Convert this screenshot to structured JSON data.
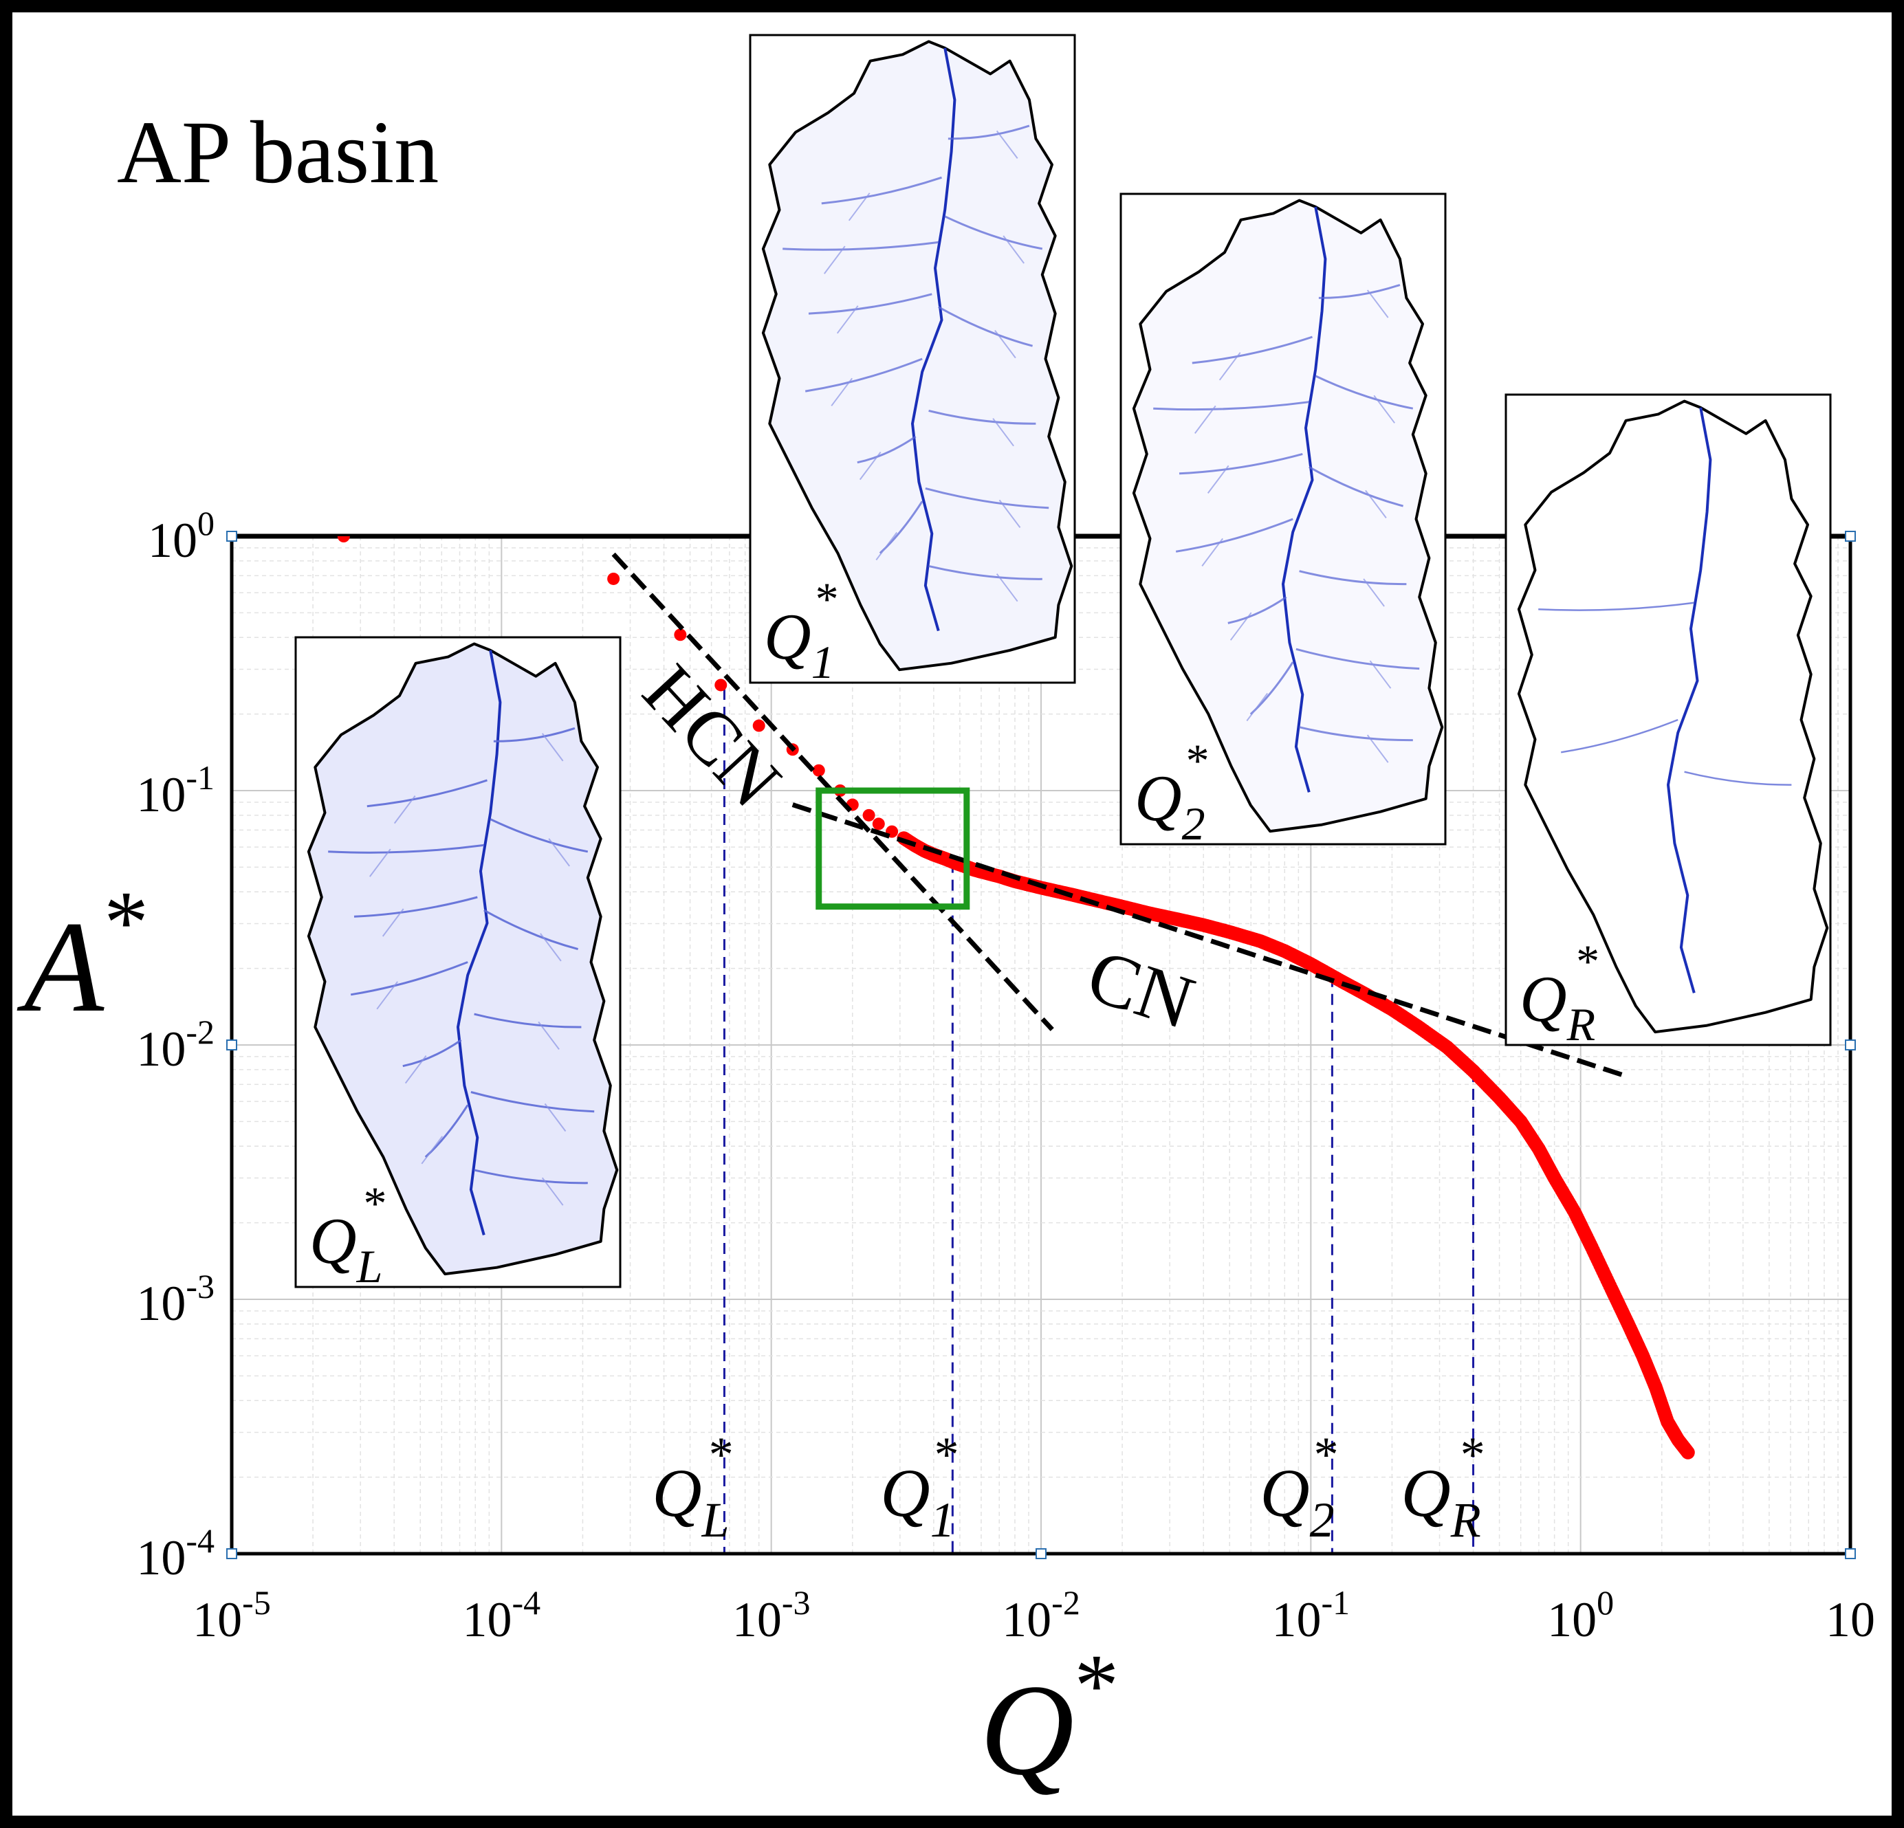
{
  "title": "AP basin",
  "chart_data": {
    "type": "scatter",
    "xlabel": "Q",
    "xlabel_sup": "*",
    "ylabel": "A",
    "ylabel_sup": "*",
    "xscale": "log",
    "yscale": "log",
    "xlim": [
      1e-05,
      10
    ],
    "ylim": [
      0.0001,
      1
    ],
    "grid": true,
    "x_ticks": [
      {
        "base": "10",
        "exp": "-5",
        "value": 1e-05
      },
      {
        "base": "10",
        "exp": "-4",
        "value": 0.0001
      },
      {
        "base": "10",
        "exp": "-3",
        "value": 0.001
      },
      {
        "base": "10",
        "exp": "-2",
        "value": 0.01
      },
      {
        "base": "10",
        "exp": "-1",
        "value": 0.1
      },
      {
        "base": "10",
        "exp": "0",
        "value": 1
      },
      {
        "base": "10",
        "exp": "",
        "value": 10
      }
    ],
    "y_ticks": [
      {
        "base": "10",
        "exp": "0",
        "value": 1
      },
      {
        "base": "10",
        "exp": "-1",
        "value": 0.1
      },
      {
        "base": "10",
        "exp": "-2",
        "value": 0.01
      },
      {
        "base": "10",
        "exp": "-3",
        "value": 0.001
      },
      {
        "base": "10",
        "exp": "-4",
        "value": 0.0001
      }
    ],
    "series": [
      {
        "color": "#ff0000",
        "points": [
          [
            2.6e-05,
            1.0
          ],
          [
            0.00026,
            0.68
          ],
          [
            0.00046,
            0.41
          ],
          [
            0.00065,
            0.26
          ],
          [
            0.0009,
            0.18
          ],
          [
            0.0012,
            0.145
          ],
          [
            0.0015,
            0.12
          ],
          [
            0.0018,
            0.1
          ],
          [
            0.002,
            0.088
          ],
          [
            0.0023,
            0.08
          ],
          [
            0.0025,
            0.074
          ],
          [
            0.0028,
            0.069
          ],
          [
            0.0031,
            0.065
          ],
          [
            0.0034,
            0.061
          ],
          [
            0.0037,
            0.058
          ],
          [
            0.004,
            0.056
          ],
          [
            0.0044,
            0.054
          ],
          [
            0.0048,
            0.052
          ],
          [
            0.0052,
            0.0505
          ],
          [
            0.0056,
            0.049
          ],
          [
            0.006,
            0.048
          ],
          [
            0.007,
            0.046
          ],
          [
            0.008,
            0.044
          ],
          [
            0.01,
            0.0415
          ],
          [
            0.013,
            0.039
          ],
          [
            0.016,
            0.037
          ],
          [
            0.02,
            0.035
          ],
          [
            0.025,
            0.033
          ],
          [
            0.032,
            0.0312
          ],
          [
            0.04,
            0.0296
          ],
          [
            0.05,
            0.0278
          ],
          [
            0.065,
            0.0256
          ],
          [
            0.08,
            0.0234
          ],
          [
            0.1,
            0.0208
          ],
          [
            0.13,
            0.0178
          ],
          [
            0.16,
            0.0158
          ],
          [
            0.2,
            0.0138
          ],
          [
            0.25,
            0.0118
          ],
          [
            0.32,
            0.0098
          ],
          [
            0.4,
            0.0079
          ],
          [
            0.5,
            0.0062
          ],
          [
            0.6,
            0.005
          ],
          [
            0.7,
            0.0039
          ],
          [
            0.8,
            0.003
          ],
          [
            0.95,
            0.0022
          ],
          [
            1.1,
            0.0016
          ],
          [
            1.3,
            0.0011
          ],
          [
            1.5,
            0.0008
          ],
          [
            1.7,
            0.0006
          ],
          [
            1.9,
            0.00045
          ],
          [
            2.1,
            0.00033
          ],
          [
            2.3,
            0.00028
          ],
          [
            2.5,
            0.00025
          ]
        ]
      }
    ],
    "fit_lines": [
      {
        "label": "HCN",
        "color": "#000000",
        "style": "dashed",
        "from": [
          0.00026,
          0.85
        ],
        "to": [
          0.011,
          0.0115
        ]
      },
      {
        "label": "CN",
        "color": "#000000",
        "style": "dashed",
        "from": [
          0.0012,
          0.088
        ],
        "to": [
          1.5,
          0.0075
        ]
      }
    ],
    "markers": [
      {
        "label": "Q",
        "sub": "L",
        "sup": "*",
        "x": 0.00067
      },
      {
        "label": "Q",
        "sub": "1",
        "sup": "*",
        "x": 0.0047
      },
      {
        "label": "Q",
        "sub": "2",
        "sup": "*",
        "x": 0.12
      },
      {
        "label": "Q",
        "sub": "R",
        "sup": "*",
        "x": 0.4
      }
    ],
    "highlight_box": {
      "color": "#1e9a1e",
      "x_range": [
        0.0015,
        0.0053
      ],
      "y_range": [
        0.035,
        0.1
      ]
    },
    "insets": [
      {
        "label": "Q",
        "sub": "L",
        "sup": "*",
        "network": "dense"
      },
      {
        "label": "Q",
        "sub": "1",
        "sup": "*",
        "network": "medium"
      },
      {
        "label": "Q",
        "sub": "2",
        "sup": "*",
        "network": "sparse"
      },
      {
        "label": "Q",
        "sub": "R",
        "sup": "*",
        "network": "main"
      }
    ],
    "colors": {
      "points": "#ff0000",
      "fit": "#000000",
      "marker_lines": "#1a1aa0",
      "box": "#1e9a1e",
      "network": "#2233cc"
    }
  }
}
